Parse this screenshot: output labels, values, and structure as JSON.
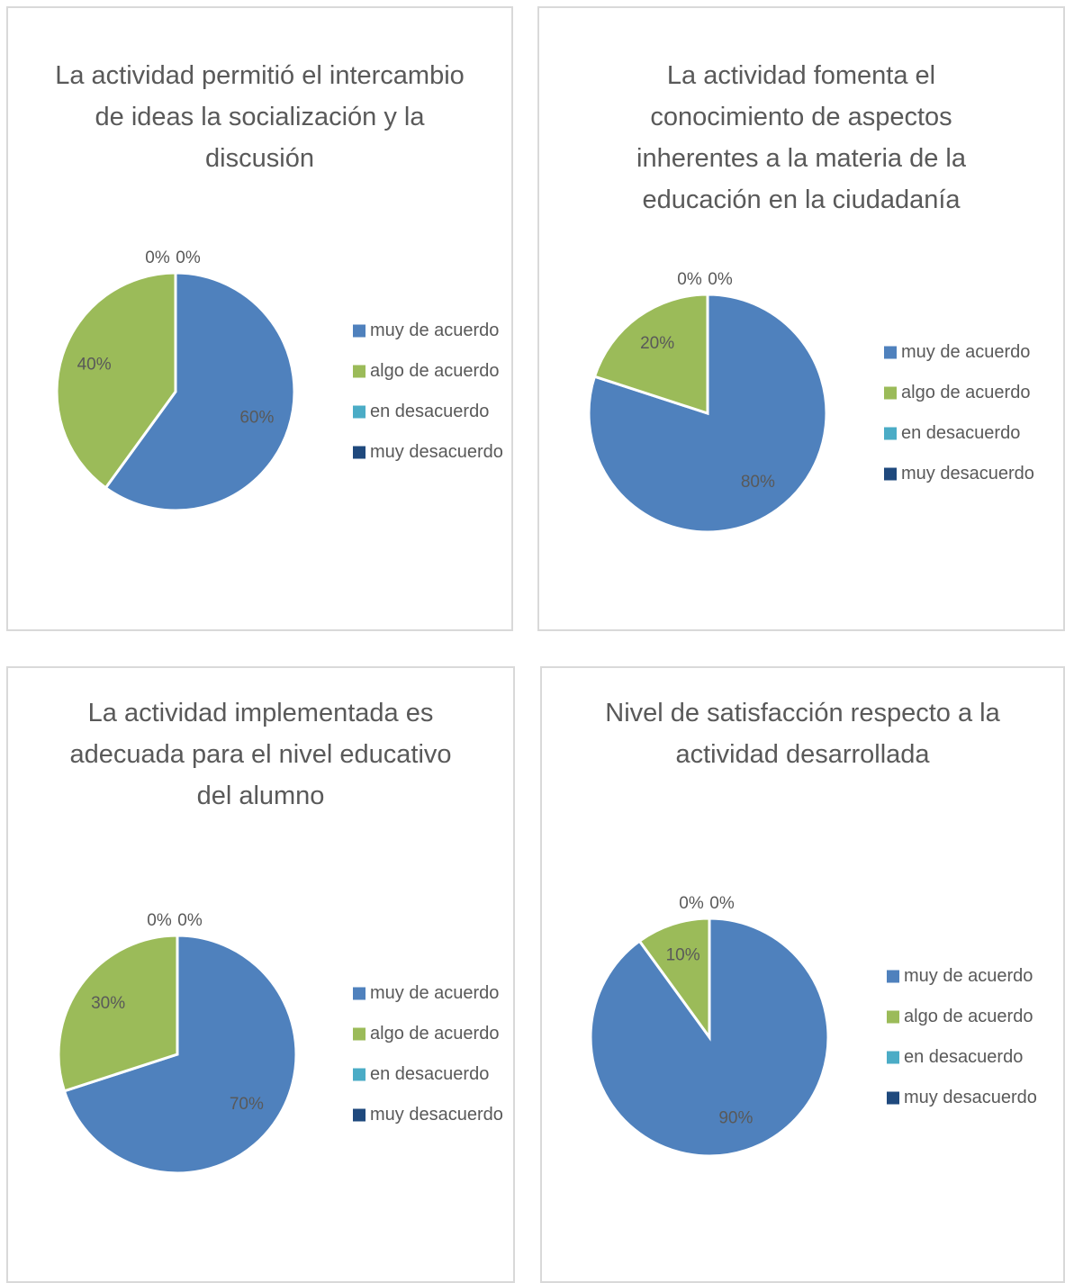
{
  "chart_data": [
    {
      "type": "pie",
      "title": "La actividad permitió el intercambio de ideas la socialización y la discusión",
      "categories": [
        "muy de acuerdo",
        "algo de acuerdo",
        "en desacuerdo",
        "muy desacuerdo"
      ],
      "values": [
        60,
        40,
        0,
        0
      ],
      "value_labels": [
        "60%",
        "40%",
        "0%",
        "0%"
      ],
      "colors": [
        "#4f81bd",
        "#9bbb59",
        "#4bacc6",
        "#1f497d"
      ],
      "legend": "right"
    },
    {
      "type": "pie",
      "title": "La actividad fomenta el conocimiento de aspectos inherentes a la materia de la educación en la ciudadanía",
      "categories": [
        "muy de acuerdo",
        "algo de acuerdo",
        "en desacuerdo",
        "muy desacuerdo"
      ],
      "values": [
        80,
        20,
        0,
        0
      ],
      "value_labels": [
        "80%",
        "20%",
        "0%",
        "0%"
      ],
      "colors": [
        "#4f81bd",
        "#9bbb59",
        "#4bacc6",
        "#1f497d"
      ],
      "legend": "right"
    },
    {
      "type": "pie",
      "title": "La actividad implementada es adecuada para el nivel educativo del alumno",
      "categories": [
        "muy de acuerdo",
        "algo de acuerdo",
        "en desacuerdo",
        "muy desacuerdo"
      ],
      "values": [
        70,
        30,
        0,
        0
      ],
      "value_labels": [
        "70%",
        "30%",
        "0%",
        "0%"
      ],
      "colors": [
        "#4f81bd",
        "#9bbb59",
        "#4bacc6",
        "#1f497d"
      ],
      "legend": "right"
    },
    {
      "type": "pie",
      "title": "Nivel de satisfacción respecto a la actividad desarrollada",
      "categories": [
        "muy de acuerdo",
        "algo de acuerdo",
        "en desacuerdo",
        "muy desacuerdo"
      ],
      "values": [
        90,
        10,
        0,
        0
      ],
      "value_labels": [
        "90%",
        "10%",
        "0%",
        "0%"
      ],
      "colors": [
        "#4f81bd",
        "#9bbb59",
        "#4bacc6",
        "#1f497d"
      ],
      "legend": "right"
    }
  ]
}
